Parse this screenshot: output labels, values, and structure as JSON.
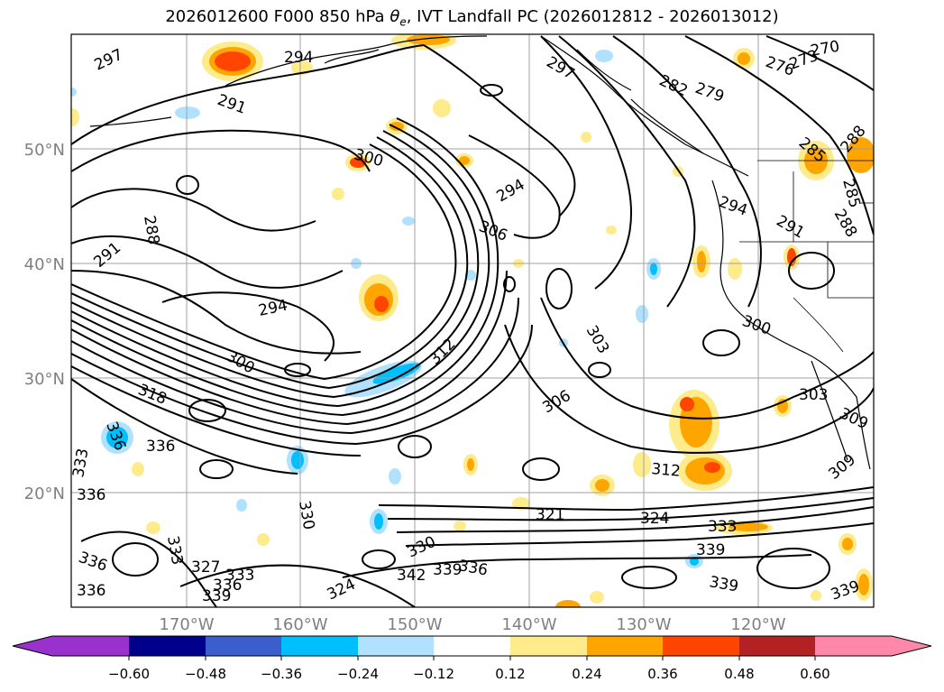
{
  "title": {
    "prefix": "2026012600 F000 850 hPa ",
    "theta": "θ",
    "theta_sub": "e",
    "suffix": ", IVT Landfall PC (2026012812 - 2026013012)"
  },
  "map": {
    "lat_labels": [
      "50°N",
      "40°N",
      "30°N",
      "20°N"
    ],
    "lon_labels": [
      "170°W",
      "160°W",
      "150°W",
      "140°W",
      "130°W",
      "120°W"
    ],
    "colors": {
      "contour": "#000000",
      "grid": "#a0a0a0",
      "coast": "#000000",
      "border": "#000000"
    }
  },
  "colorbar": {
    "tick_labels": [
      "−0.60",
      "−0.48",
      "−0.36",
      "−0.24",
      "−0.12",
      "0.12",
      "0.24",
      "0.36",
      "0.48",
      "0.60"
    ],
    "colors": [
      "#9932cc",
      "#00008b",
      "#3a5fcd",
      "#00bfff",
      "#b0e2ff",
      "#ffffff",
      "#fdeb8c",
      "#ffa500",
      "#ff4500",
      "#b22222",
      "#ff88aa"
    ]
  },
  "contour_labels": [
    {
      "text": "297"
    },
    {
      "text": "294"
    },
    {
      "text": "291"
    },
    {
      "text": "288"
    },
    {
      "text": "291"
    },
    {
      "text": "294"
    },
    {
      "text": "300"
    },
    {
      "text": "300"
    },
    {
      "text": "294"
    },
    {
      "text": "306"
    },
    {
      "text": "318"
    },
    {
      "text": "312"
    },
    {
      "text": "303"
    },
    {
      "text": "306"
    },
    {
      "text": "336"
    },
    {
      "text": "336"
    },
    {
      "text": "333"
    },
    {
      "text": "336"
    },
    {
      "text": "330"
    },
    {
      "text": "333"
    },
    {
      "text": "327"
    },
    {
      "text": "333"
    },
    {
      "text": "336"
    },
    {
      "text": "339"
    },
    {
      "text": "336"
    },
    {
      "text": "336"
    },
    {
      "text": "324"
    },
    {
      "text": "330"
    },
    {
      "text": "342"
    },
    {
      "text": "339"
    },
    {
      "text": "336"
    },
    {
      "text": "321"
    },
    {
      "text": "324"
    },
    {
      "text": "312"
    },
    {
      "text": "333"
    },
    {
      "text": "339"
    },
    {
      "text": "339"
    },
    {
      "text": "339"
    },
    {
      "text": "297"
    },
    {
      "text": "282"
    },
    {
      "text": "279"
    },
    {
      "text": "276"
    },
    {
      "text": "273"
    },
    {
      "text": "270"
    },
    {
      "text": "285"
    },
    {
      "text": "288"
    },
    {
      "text": "285"
    },
    {
      "text": "288"
    },
    {
      "text": "294"
    },
    {
      "text": "291"
    },
    {
      "text": "300"
    },
    {
      "text": "303"
    },
    {
      "text": "309"
    },
    {
      "text": "309"
    }
  ]
}
